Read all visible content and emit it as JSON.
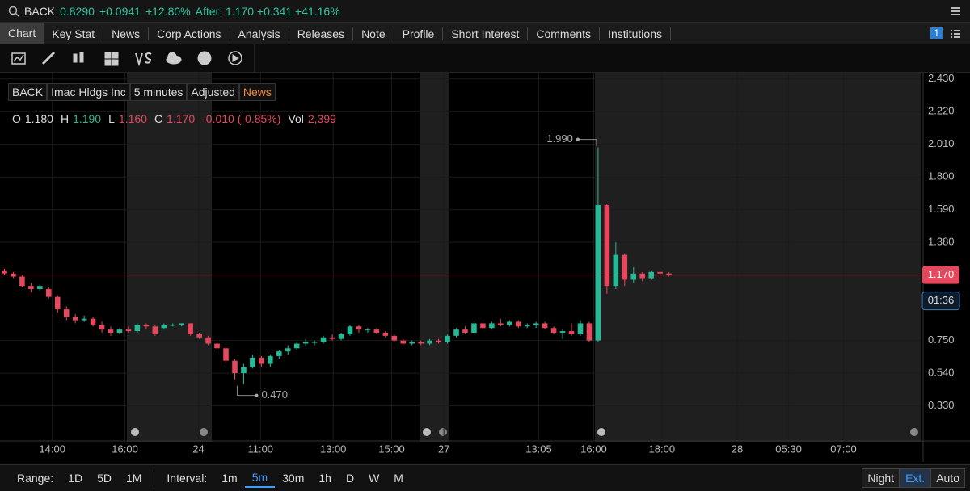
{
  "header": {
    "symbol": "BACK",
    "last": "0.8290",
    "change": "+0.0941",
    "change_pct": "+12.80%",
    "after": "After: 1.170 +0.341 +41.16%"
  },
  "tabs": [
    "Chart",
    "Key Stat",
    "News",
    "Corp Actions",
    "Analysis",
    "Releases",
    "Note",
    "Profile",
    "Short Interest",
    "Comments",
    "Institutions"
  ],
  "tab_badge": "1",
  "legend_chips": [
    "BACK",
    "Imac Hldgs Inc",
    "5 minutes",
    "Adjusted",
    "News"
  ],
  "ohlc_bar": [
    {
      "key": "O",
      "value": "1.180"
    },
    {
      "key": "H",
      "value": "1.190"
    },
    {
      "key": "L",
      "value": "1.160"
    },
    {
      "key": "C",
      "value": "1.170"
    },
    {
      "value": "-0.010 (-0.85%)"
    },
    {
      "key": "Vol",
      "value": "2,399"
    }
  ],
  "chart_data": {
    "type": "candlestick",
    "up_color": "#26b996",
    "down_color": "#e5475d",
    "candles": {
      "open": [
        1.2,
        1.18,
        1.16,
        1.1,
        1.08,
        1.08,
        1.03,
        0.95,
        0.9,
        0.88,
        0.89,
        0.85,
        0.82,
        0.8,
        0.82,
        0.81,
        0.85,
        0.84,
        0.83,
        0.85,
        0.85,
        0.86,
        0.79,
        0.77,
        0.73,
        0.7,
        0.62,
        0.54,
        0.58,
        0.64,
        0.6,
        0.65,
        0.68,
        0.7,
        0.73,
        0.74,
        0.74,
        0.77,
        0.76,
        0.79,
        0.84,
        0.82,
        0.82,
        0.8,
        0.78,
        0.75,
        0.73,
        0.74,
        0.73,
        0.75,
        0.74,
        0.78,
        0.82,
        0.8,
        0.86,
        0.83,
        0.86,
        0.85,
        0.87,
        0.84,
        0.85,
        0.86,
        0.83,
        0.8,
        0.81,
        0.79,
        0.86,
        0.75,
        1.62,
        1.1,
        1.3,
        1.14,
        1.18,
        1.15,
        1.19,
        1.18
      ],
      "high": [
        1.21,
        1.19,
        1.17,
        1.12,
        1.11,
        1.09,
        1.04,
        0.97,
        0.92,
        0.91,
        0.9,
        0.87,
        0.84,
        0.83,
        0.84,
        0.86,
        0.86,
        0.85,
        0.86,
        0.86,
        0.86,
        0.86,
        0.8,
        0.78,
        0.74,
        0.71,
        0.63,
        0.6,
        0.66,
        0.65,
        0.66,
        0.69,
        0.72,
        0.74,
        0.76,
        0.75,
        0.78,
        0.79,
        0.8,
        0.85,
        0.85,
        0.83,
        0.83,
        0.81,
        0.79,
        0.76,
        0.75,
        0.75,
        0.76,
        0.76,
        0.79,
        0.83,
        0.84,
        0.88,
        0.87,
        0.87,
        0.89,
        0.88,
        0.88,
        0.86,
        0.87,
        0.87,
        0.84,
        0.82,
        0.86,
        0.88,
        0.87,
        1.99,
        1.63,
        1.38,
        1.31,
        1.22,
        1.19,
        1.2,
        1.2,
        1.19
      ],
      "low": [
        1.17,
        1.15,
        1.09,
        1.06,
        1.07,
        1.02,
        0.93,
        0.88,
        0.86,
        0.87,
        0.84,
        0.8,
        0.78,
        0.79,
        0.8,
        0.8,
        0.82,
        0.78,
        0.82,
        0.84,
        0.84,
        0.78,
        0.76,
        0.72,
        0.69,
        0.6,
        0.5,
        0.47,
        0.57,
        0.58,
        0.58,
        0.63,
        0.66,
        0.69,
        0.71,
        0.72,
        0.73,
        0.75,
        0.75,
        0.78,
        0.8,
        0.8,
        0.79,
        0.77,
        0.74,
        0.72,
        0.72,
        0.72,
        0.72,
        0.73,
        0.73,
        0.77,
        0.79,
        0.79,
        0.82,
        0.82,
        0.84,
        0.84,
        0.83,
        0.83,
        0.83,
        0.82,
        0.79,
        0.76,
        0.78,
        0.78,
        0.74,
        0.74,
        1.05,
        1.08,
        1.1,
        1.12,
        1.13,
        1.14,
        1.16,
        1.16
      ],
      "close": [
        1.18,
        1.16,
        1.1,
        1.08,
        1.1,
        1.03,
        0.95,
        0.9,
        0.88,
        0.89,
        0.85,
        0.82,
        0.8,
        0.82,
        0.81,
        0.85,
        0.84,
        0.79,
        0.85,
        0.85,
        0.86,
        0.79,
        0.77,
        0.73,
        0.7,
        0.62,
        0.54,
        0.58,
        0.64,
        0.6,
        0.65,
        0.68,
        0.7,
        0.73,
        0.74,
        0.74,
        0.77,
        0.76,
        0.79,
        0.84,
        0.82,
        0.82,
        0.8,
        0.78,
        0.75,
        0.73,
        0.74,
        0.73,
        0.75,
        0.74,
        0.78,
        0.82,
        0.8,
        0.86,
        0.83,
        0.86,
        0.85,
        0.87,
        0.84,
        0.85,
        0.86,
        0.83,
        0.8,
        0.81,
        0.79,
        0.86,
        0.75,
        1.62,
        1.1,
        1.3,
        1.14,
        1.18,
        1.15,
        1.19,
        1.18,
        1.17
      ]
    },
    "ylim": [
      0.11,
      2.46
    ],
    "yticks": [
      {
        "value": 2.43,
        "label": "2.430"
      },
      {
        "value": 2.22,
        "label": "2.220"
      },
      {
        "value": 2.01,
        "label": "2.010"
      },
      {
        "value": 1.8,
        "label": "1.800"
      },
      {
        "value": 1.59,
        "label": "1.590"
      },
      {
        "value": 1.38,
        "label": "1.380"
      },
      {
        "value": 0.75,
        "label": "0.750"
      },
      {
        "value": 0.54,
        "label": "0.540"
      },
      {
        "value": 0.33,
        "label": "0.330"
      }
    ],
    "xlim": [
      -0.5,
      103.5
    ],
    "xticks": [
      {
        "value": 5.4,
        "label": "14:00"
      },
      {
        "value": 13.6,
        "label": "16:00"
      },
      {
        "value": 21.9,
        "label": "24"
      },
      {
        "value": 28.9,
        "label": "11:00"
      },
      {
        "value": 37.1,
        "label": "13:00"
      },
      {
        "value": 43.7,
        "label": "15:00"
      },
      {
        "value": 49.6,
        "label": "27"
      },
      {
        "value": 60.3,
        "label": "13:05"
      },
      {
        "value": 66.5,
        "label": "16:00"
      },
      {
        "value": 74.2,
        "label": "18:00"
      },
      {
        "value": 82.7,
        "label": "28"
      },
      {
        "value": 88.5,
        "label": "05:30"
      },
      {
        "value": 94.7,
        "label": "07:00"
      }
    ],
    "annotations": [
      {
        "value": 1.99,
        "label": "1.990"
      },
      {
        "value": 0.47,
        "label": "0.470"
      }
    ],
    "last_price": {
      "value": 1.17,
      "label": "1.170"
    },
    "countdown": "01:36",
    "grid": true
  },
  "footer": {
    "range_label": "Range:",
    "ranges": [
      "1D",
      "5D",
      "1M"
    ],
    "interval_label": "Interval:",
    "intervals": [
      "1m",
      "5m",
      "30m",
      "1h",
      "D",
      "W",
      "M"
    ],
    "active_interval": 1,
    "toggles": [
      "Night",
      "Ext.",
      "Auto"
    ],
    "active_toggle": 1
  }
}
